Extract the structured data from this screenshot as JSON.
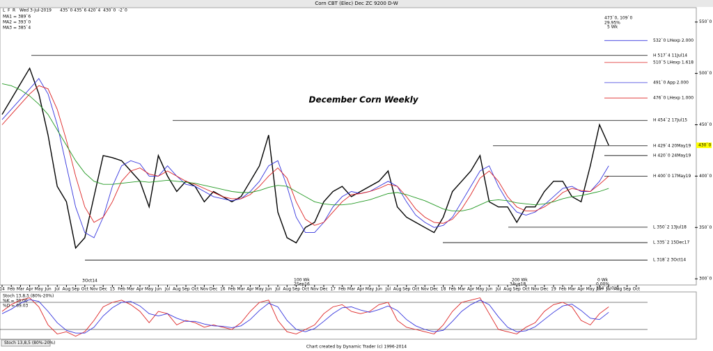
{
  "chart_data": {
    "type": "line",
    "window_title": "Corn CBT (Elec) Dec ZC 9200 D-W",
    "header": {
      "date": "Wed 3-Jul-2019",
      "open": "435`0",
      "high": "435`6",
      "low": "420`4",
      "close": "430`0",
      "change": "-2`0",
      "buttons": [
        "L",
        "F",
        "R"
      ]
    },
    "title": "December Corn Weekly",
    "current_price": {
      "value": 430,
      "label": "430`0"
    },
    "categories": [
      "14",
      "Feb",
      "Mar",
      "Apr",
      "May",
      "Jun",
      "Jul",
      "Aug",
      "Sep",
      "Oct",
      "Nov",
      "Dec",
      "15",
      "Feb",
      "Mar",
      "Apr",
      "May",
      "Jun",
      "Jul",
      "Aug",
      "Sep",
      "Oct",
      "Nov",
      "Dec",
      "16",
      "Feb",
      "Mar",
      "Apr",
      "May",
      "Jun",
      "Jul",
      "Aug",
      "Sep",
      "Oct",
      "Nov",
      "Dec",
      "17",
      "Feb",
      "Mar",
      "Apr",
      "May",
      "Jun",
      "Jul",
      "Aug",
      "Sep",
      "Oct",
      "Nov",
      "Dec",
      "18",
      "Feb",
      "Mar",
      "Apr",
      "May",
      "Jun",
      "Jul",
      "Aug",
      "Sep",
      "Oct",
      "Nov",
      "Dec",
      "19",
      "Feb",
      "Mar",
      "Apr",
      "May",
      "Jun",
      "Jul",
      "Aug",
      "Sep",
      "Oct"
    ],
    "series": [
      {
        "name": "Price",
        "color": "#000000",
        "values": [
          460,
          475,
          490,
          505,
          480,
          440,
          390,
          375,
          330,
          340,
          380,
          420,
          418,
          415,
          405,
          395,
          370,
          420,
          400,
          385,
          395,
          390,
          375,
          385,
          380,
          375,
          380,
          395,
          410,
          440,
          365,
          340,
          335,
          350,
          355,
          375,
          385,
          390,
          380,
          385,
          390,
          395,
          405,
          370,
          360,
          355,
          350,
          345,
          360,
          385,
          395,
          405,
          420,
          375,
          370,
          370,
          355,
          370,
          370,
          385,
          395,
          395,
          380,
          375,
          410,
          450,
          430,
          null,
          null,
          null
        ]
      },
      {
        "name": "MA1 = 389`6",
        "color": "#3333dd",
        "values": [
          455,
          465,
          475,
          485,
          495,
          480,
          450,
          410,
          370,
          345,
          340,
          360,
          390,
          410,
          415,
          412,
          400,
          400,
          410,
          400,
          392,
          390,
          385,
          380,
          378,
          376,
          378,
          385,
          395,
          410,
          415,
          390,
          360,
          345,
          345,
          355,
          370,
          380,
          385,
          383,
          385,
          390,
          395,
          390,
          375,
          362,
          355,
          350,
          352,
          360,
          375,
          390,
          405,
          410,
          390,
          375,
          365,
          362,
          365,
          372,
          380,
          388,
          390,
          385,
          385,
          395,
          410,
          null,
          null,
          null
        ]
      },
      {
        "name": "MA2 = 393`0",
        "color": "#dd2222",
        "values": [
          450,
          460,
          470,
          480,
          488,
          485,
          465,
          435,
          400,
          370,
          355,
          360,
          375,
          395,
          405,
          408,
          402,
          400,
          405,
          400,
          395,
          392,
          388,
          384,
          380,
          378,
          378,
          382,
          390,
          400,
          408,
          398,
          375,
          358,
          352,
          355,
          365,
          375,
          382,
          383,
          385,
          388,
          392,
          390,
          380,
          368,
          360,
          355,
          354,
          358,
          368,
          382,
          398,
          405,
          395,
          380,
          370,
          366,
          366,
          370,
          376,
          384,
          388,
          386,
          385,
          392,
          400,
          null,
          null,
          null
        ]
      },
      {
        "name": "MA3 = 385`4",
        "color": "#229922",
        "values": [
          490,
          488,
          484,
          478,
          470,
          460,
          445,
          430,
          415,
          403,
          395,
          392,
          392,
          393,
          394,
          395,
          394,
          395,
          396,
          395,
          394,
          393,
          391,
          389,
          387,
          385,
          384,
          384,
          386,
          389,
          391,
          390,
          385,
          380,
          375,
          373,
          372,
          372,
          373,
          375,
          377,
          380,
          383,
          384,
          382,
          379,
          376,
          372,
          368,
          366,
          366,
          368,
          372,
          376,
          377,
          376,
          374,
          373,
          372,
          373,
          375,
          378,
          380,
          381,
          383,
          385,
          388,
          null,
          null,
          null
        ]
      }
    ],
    "ylim": [
      294,
      562
    ],
    "yticks": [
      {
        "value": 550,
        "label": "550`0"
      },
      {
        "value": 500,
        "label": "500`0"
      },
      {
        "value": 450,
        "label": "450`0"
      },
      {
        "value": 400,
        "label": "400`0"
      },
      {
        "value": 350,
        "label": "350`0"
      },
      {
        "value": 300,
        "label": "300`0"
      }
    ],
    "levels": [
      {
        "value": 532,
        "label": "532`0 LHexp 2.000",
        "color": "#3333dd"
      },
      {
        "value": 517.5,
        "label": "H 517`4 11Jul14",
        "color": "#000000"
      },
      {
        "value": 510.625,
        "label": "510`5 LHexp 1.618",
        "color": "#dd2222"
      },
      {
        "value": 491,
        "label": "491`0 App 2.000",
        "color": "#3333dd"
      },
      {
        "value": 476,
        "label": "476`0 LHexp 1.000",
        "color": "#dd2222"
      },
      {
        "value": 454.25,
        "label": "H 454`2 17Jul15",
        "color": "#000000"
      },
      {
        "value": 429.5,
        "label": "H 429`4 20May19",
        "color": "#000000"
      },
      {
        "value": 420,
        "label": "H 420`0 24May19",
        "color": "#000000"
      },
      {
        "value": 400,
        "label": "H 400`0 17May19",
        "color": "#000000"
      },
      {
        "value": 350.25,
        "label": "L 350`2 13Jul18",
        "color": "#000000"
      },
      {
        "value": 335.25,
        "label": "L 335`2 15Dec17",
        "color": "#000000"
      },
      {
        "value": 318.25,
        "label": "L 318`2 3Oct14",
        "color": "#000000"
      }
    ],
    "annotations": [
      "473`0, 109`0",
      "29.95%",
      "5 Wk",
      "3Oct14",
      "100 Wk",
      "2Sep16",
      "200 Wk",
      "3Aug18",
      "0 Wk",
      "0.00%",
      "364`0, 0`0"
    ],
    "stochastic": {
      "title": "Stoch 13,8,5 (80%-20%)",
      "series": [
        {
          "name": "%K = 70.00",
          "color": "#dd2222",
          "values": [
            60,
            75,
            85,
            90,
            70,
            30,
            10,
            15,
            5,
            15,
            40,
            70,
            80,
            85,
            75,
            60,
            35,
            60,
            55,
            30,
            40,
            35,
            25,
            30,
            25,
            20,
            35,
            60,
            80,
            85,
            40,
            15,
            10,
            20,
            30,
            55,
            70,
            75,
            60,
            55,
            60,
            75,
            80,
            40,
            25,
            20,
            15,
            10,
            30,
            60,
            80,
            85,
            90,
            55,
            20,
            15,
            10,
            25,
            35,
            60,
            75,
            80,
            70,
            40,
            30,
            55,
            70,
            null,
            null,
            null
          ]
        },
        {
          "name": "%D = 69.03",
          "color": "#3333dd",
          "values": [
            55,
            65,
            78,
            86,
            82,
            60,
            35,
            18,
            12,
            12,
            25,
            50,
            68,
            80,
            82,
            72,
            55,
            50,
            55,
            45,
            38,
            38,
            32,
            28,
            27,
            24,
            28,
            42,
            62,
            78,
            70,
            40,
            20,
            15,
            22,
            38,
            55,
            68,
            70,
            63,
            58,
            64,
            72,
            62,
            42,
            28,
            20,
            15,
            18,
            38,
            60,
            75,
            85,
            75,
            48,
            25,
            15,
            17,
            26,
            42,
            58,
            72,
            76,
            62,
            45,
            42,
            58,
            null,
            null,
            null
          ]
        }
      ],
      "ylim": [
        0,
        100
      ],
      "levels": [
        80,
        20
      ]
    },
    "footer": "Chart created by Dynamic Trader  (c) 1996-2014",
    "tab": "Stoch 13,8,5 (80%-20%)"
  }
}
